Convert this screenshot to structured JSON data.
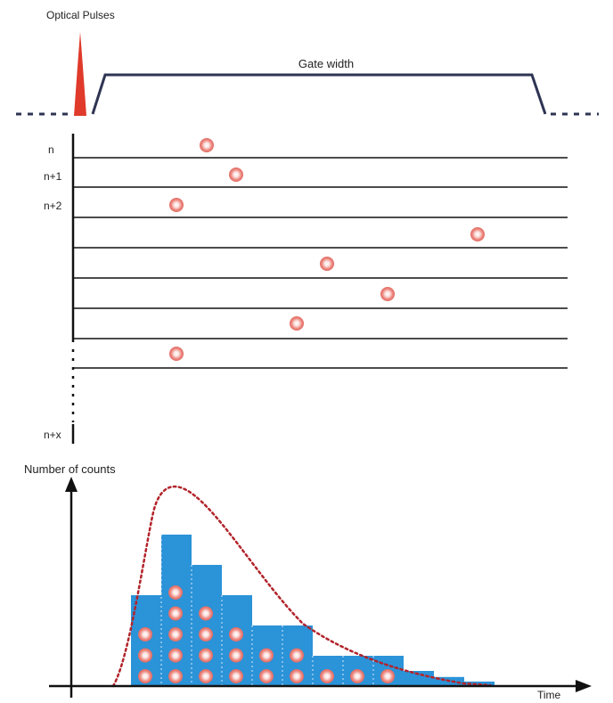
{
  "labels": {
    "optical_pulses": "Optical Pulses",
    "gate_width": "Gate width",
    "row_n": "n",
    "row_n1": "n+1",
    "row_n2": "n+2",
    "row_nx": "n+x",
    "y_axis": "Number of counts",
    "x_axis": "Time"
  },
  "colors": {
    "pulse": "#e03a2a",
    "gate_line": "#2e3452",
    "bar_fill": "#2b93d8",
    "photon_outer": "#e8736b",
    "photon_inner": "#f7d3cf",
    "fit_curve": "#b2232a",
    "axis": "#111111"
  },
  "histogram": {
    "bin_counts": [
      3,
      5,
      4,
      3,
      2,
      2,
      1,
      1,
      1,
      0.5,
      0.3,
      0.15
    ],
    "photon_dots_per_bin": [
      3,
      5,
      4,
      3,
      2,
      2,
      1,
      1,
      1
    ]
  }
}
